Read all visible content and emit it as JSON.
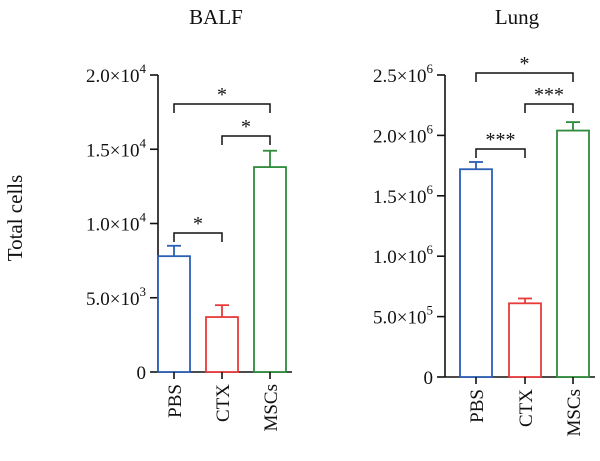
{
  "ylabel": "Total cells",
  "chart_data": [
    {
      "type": "bar",
      "title": "BALF",
      "ylabel": "Total cells",
      "ylim": [
        0,
        20000
      ],
      "categories": [
        "PBS",
        "CTX",
        "MSCs"
      ],
      "values": [
        7800,
        3700,
        13800
      ],
      "errors": [
        700,
        800,
        1100
      ],
      "colors": [
        "#2b5fb4",
        "#e83a3a",
        "#2e8b3a"
      ],
      "y_ticks": [
        {
          "value": 0,
          "base": "0",
          "exp": ""
        },
        {
          "value": 5000,
          "base": "5.0×10",
          "exp": "3"
        },
        {
          "value": 10000,
          "base": "1.0×10",
          "exp": "4"
        },
        {
          "value": 15000,
          "base": "1.5×10",
          "exp": "4"
        },
        {
          "value": 20000,
          "base": "2.0×10",
          "exp": "4"
        }
      ],
      "significance": [
        {
          "from": 0,
          "to": 1,
          "label": "*"
        },
        {
          "from": 1,
          "to": 2,
          "label": "*"
        },
        {
          "from": 0,
          "to": 2,
          "label": "*"
        }
      ]
    },
    {
      "type": "bar",
      "title": "Lung",
      "ylim": [
        0,
        2500000
      ],
      "categories": [
        "PBS",
        "CTX",
        "MSCs"
      ],
      "values": [
        1720000,
        610000,
        2040000
      ],
      "errors": [
        60000,
        40000,
        70000
      ],
      "colors": [
        "#2b5fb4",
        "#e83a3a",
        "#2e8b3a"
      ],
      "y_ticks": [
        {
          "value": 0,
          "base": "0",
          "exp": ""
        },
        {
          "value": 500000,
          "base": "5.0×10",
          "exp": "5"
        },
        {
          "value": 1000000,
          "base": "1.0×10",
          "exp": "6"
        },
        {
          "value": 1500000,
          "base": "1.5×10",
          "exp": "6"
        },
        {
          "value": 2000000,
          "base": "2.0×10",
          "exp": "6"
        },
        {
          "value": 2500000,
          "base": "2.5×10",
          "exp": "6"
        }
      ],
      "significance": [
        {
          "from": 0,
          "to": 1,
          "label": "***"
        },
        {
          "from": 1,
          "to": 2,
          "label": "***"
        },
        {
          "from": 0,
          "to": 2,
          "label": "*"
        }
      ]
    }
  ]
}
